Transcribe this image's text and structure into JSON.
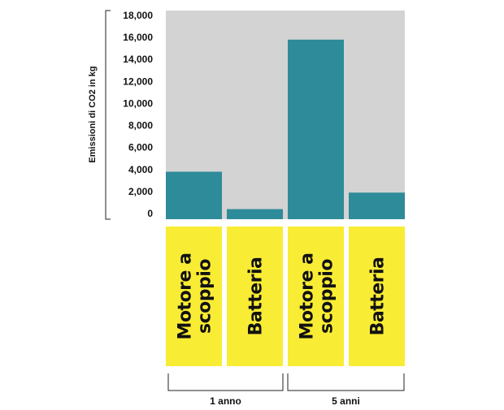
{
  "chart_data": {
    "type": "bar",
    "ylabel": "Emissioni di CO2 in kg",
    "ylim": [
      0,
      18000
    ],
    "yticks": [
      "0",
      "2,000",
      "4,000",
      "6,000",
      "8,000",
      "10,000",
      "12,000",
      "14,000",
      "16,000",
      "18,000"
    ],
    "categories": [
      {
        "label_lines": [
          "Motore a",
          "scoppio"
        ],
        "group": "1 anno",
        "value": 3800
      },
      {
        "label_lines": [
          "Batteria"
        ],
        "group": "1 anno",
        "value": 400
      },
      {
        "label_lines": [
          "Motore a",
          "scoppio"
        ],
        "group": "5 anni",
        "value": 15800
      },
      {
        "label_lines": [
          "Batteria"
        ],
        "group": "5 anni",
        "value": 1900
      }
    ],
    "groups": [
      "1 anno",
      "5 anni"
    ],
    "grid": false
  },
  "colors": {
    "plot_background": "#d3d3d3",
    "bar": "#2e8b99",
    "label_box": "#f9ec34",
    "axis": "#222222"
  }
}
